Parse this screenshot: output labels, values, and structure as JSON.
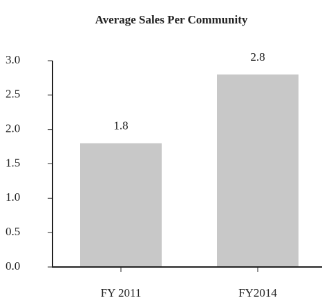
{
  "chart_data": {
    "type": "bar",
    "title": "Average Sales Per Community",
    "categories": [
      "FY 2011",
      "FY2014"
    ],
    "values": [
      1.8,
      2.8
    ],
    "color": "#c8c8c8",
    "ylim": [
      0,
      3
    ],
    "yticks": [
      {
        "value": 0,
        "label": "0.0"
      },
      0.5,
      {
        "value": 1,
        "label": "1.0"
      },
      1.5,
      {
        "value": 2,
        "label": "2.0"
      },
      2.5,
      {
        "value": 3,
        "label": "3.0"
      }
    ],
    "grid": false
  }
}
